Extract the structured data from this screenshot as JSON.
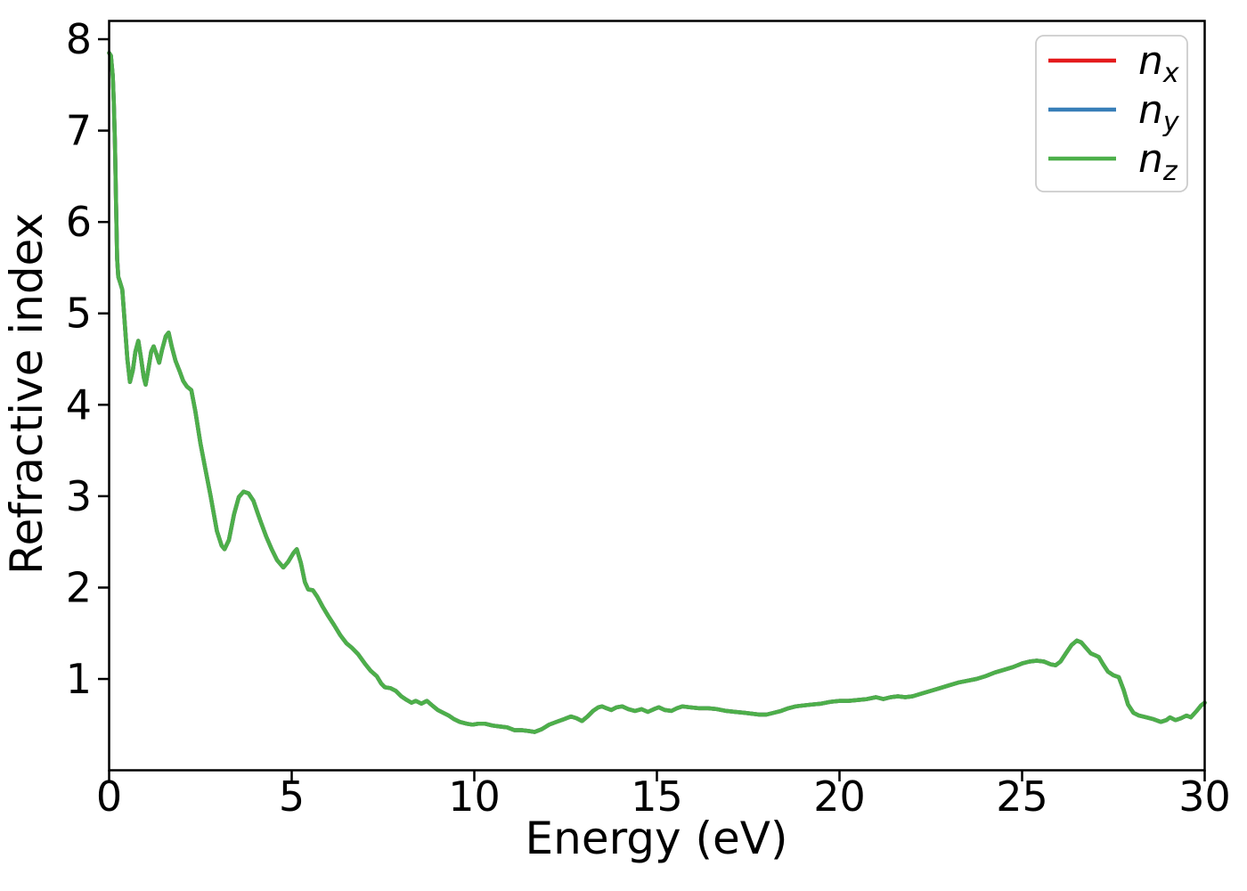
{
  "chart_data": {
    "type": "line",
    "title": "",
    "xlabel": "Energy (eV)",
    "ylabel": "Refractive index",
    "xlim": [
      0,
      30
    ],
    "ylim": [
      0,
      8.2
    ],
    "xticks": [
      0,
      5,
      10,
      15,
      20,
      25,
      30
    ],
    "yticks": [
      1,
      2,
      3,
      4,
      5,
      6,
      7,
      8
    ],
    "grid": false,
    "note": "All three series (n_x, n_y, n_z) coincide exactly; n_z (green) is drawn last so only the green curve is visible.",
    "legend": {
      "position": "upper right",
      "border_color": "#cccccc",
      "entries": [
        {
          "label": "n_x",
          "color": "#e41a1c"
        },
        {
          "label": "n_y",
          "color": "#377eb8"
        },
        {
          "label": "n_z",
          "color": "#4daf4a"
        }
      ]
    },
    "series": [
      {
        "name": "n_x",
        "color": "#e41a1c",
        "coincides_with": "n_z"
      },
      {
        "name": "n_y",
        "color": "#377eb8",
        "coincides_with": "n_z"
      },
      {
        "name": "n_z",
        "color": "#4daf4a",
        "points": [
          [
            0,
            7.85
          ],
          [
            0.05,
            7.82
          ],
          [
            0.1,
            7.6
          ],
          [
            0.13,
            7.3
          ],
          [
            0.16,
            6.85
          ],
          [
            0.19,
            6.2
          ],
          [
            0.22,
            5.6
          ],
          [
            0.25,
            5.4
          ],
          [
            0.3,
            5.34
          ],
          [
            0.36,
            5.26
          ],
          [
            0.4,
            5.05
          ],
          [
            0.45,
            4.78
          ],
          [
            0.5,
            4.5
          ],
          [
            0.57,
            4.25
          ],
          [
            0.65,
            4.38
          ],
          [
            0.72,
            4.58
          ],
          [
            0.8,
            4.7
          ],
          [
            0.87,
            4.52
          ],
          [
            0.95,
            4.3
          ],
          [
            1,
            4.22
          ],
          [
            1.07,
            4.38
          ],
          [
            1.15,
            4.58
          ],
          [
            1.22,
            4.64
          ],
          [
            1.3,
            4.55
          ],
          [
            1.37,
            4.46
          ],
          [
            1.45,
            4.6
          ],
          [
            1.55,
            4.75
          ],
          [
            1.63,
            4.79
          ],
          [
            1.72,
            4.63
          ],
          [
            1.82,
            4.48
          ],
          [
            1.93,
            4.37
          ],
          [
            2.03,
            4.26
          ],
          [
            2.13,
            4.2
          ],
          [
            2.25,
            4.16
          ],
          [
            2.36,
            3.93
          ],
          [
            2.5,
            3.58
          ],
          [
            2.62,
            3.33
          ],
          [
            2.78,
            3
          ],
          [
            2.95,
            2.62
          ],
          [
            3.08,
            2.46
          ],
          [
            3.16,
            2.42
          ],
          [
            3.28,
            2.52
          ],
          [
            3.42,
            2.8
          ],
          [
            3.55,
            2.99
          ],
          [
            3.68,
            3.05
          ],
          [
            3.82,
            3.03
          ],
          [
            3.95,
            2.95
          ],
          [
            4.08,
            2.8
          ],
          [
            4.16,
            2.71
          ],
          [
            4.3,
            2.56
          ],
          [
            4.45,
            2.42
          ],
          [
            4.6,
            2.3
          ],
          [
            4.77,
            2.22
          ],
          [
            4.9,
            2.28
          ],
          [
            5.05,
            2.38
          ],
          [
            5.14,
            2.42
          ],
          [
            5.25,
            2.27
          ],
          [
            5.36,
            2.06
          ],
          [
            5.45,
            1.98
          ],
          [
            5.58,
            1.97
          ],
          [
            5.7,
            1.9
          ],
          [
            5.85,
            1.79
          ],
          [
            6,
            1.69
          ],
          [
            6.16,
            1.59
          ],
          [
            6.33,
            1.48
          ],
          [
            6.5,
            1.39
          ],
          [
            6.65,
            1.34
          ],
          [
            6.82,
            1.27
          ],
          [
            7,
            1.17
          ],
          [
            7.16,
            1.09
          ],
          [
            7.33,
            1.03
          ],
          [
            7.45,
            0.95
          ],
          [
            7.55,
            0.91
          ],
          [
            7.7,
            0.9
          ],
          [
            7.85,
            0.87
          ],
          [
            8,
            0.81
          ],
          [
            8.15,
            0.77
          ],
          [
            8.28,
            0.74
          ],
          [
            8.4,
            0.76
          ],
          [
            8.55,
            0.73
          ],
          [
            8.7,
            0.76
          ],
          [
            8.85,
            0.71
          ],
          [
            9,
            0.66
          ],
          [
            9.15,
            0.63
          ],
          [
            9.3,
            0.6
          ],
          [
            9.45,
            0.56
          ],
          [
            9.6,
            0.53
          ],
          [
            9.8,
            0.51
          ],
          [
            9.95,
            0.5
          ],
          [
            10.1,
            0.51
          ],
          [
            10.3,
            0.51
          ],
          [
            10.5,
            0.49
          ],
          [
            10.7,
            0.48
          ],
          [
            10.9,
            0.47
          ],
          [
            11.1,
            0.44
          ],
          [
            11.3,
            0.44
          ],
          [
            11.5,
            0.43
          ],
          [
            11.65,
            0.42
          ],
          [
            11.85,
            0.45
          ],
          [
            12.05,
            0.5
          ],
          [
            12.25,
            0.53
          ],
          [
            12.45,
            0.56
          ],
          [
            12.65,
            0.59
          ],
          [
            12.8,
            0.57
          ],
          [
            12.95,
            0.54
          ],
          [
            13.1,
            0.59
          ],
          [
            13.25,
            0.65
          ],
          [
            13.4,
            0.69
          ],
          [
            13.5,
            0.7
          ],
          [
            13.62,
            0.68
          ],
          [
            13.75,
            0.66
          ],
          [
            13.9,
            0.69
          ],
          [
            14.05,
            0.7
          ],
          [
            14.22,
            0.67
          ],
          [
            14.4,
            0.65
          ],
          [
            14.58,
            0.67
          ],
          [
            14.75,
            0.64
          ],
          [
            14.92,
            0.67
          ],
          [
            15.05,
            0.69
          ],
          [
            15.22,
            0.66
          ],
          [
            15.4,
            0.65
          ],
          [
            15.55,
            0.68
          ],
          [
            15.7,
            0.7
          ],
          [
            15.9,
            0.69
          ],
          [
            16.15,
            0.68
          ],
          [
            16.4,
            0.68
          ],
          [
            16.65,
            0.67
          ],
          [
            16.9,
            0.65
          ],
          [
            17.15,
            0.64
          ],
          [
            17.4,
            0.63
          ],
          [
            17.6,
            0.62
          ],
          [
            17.8,
            0.61
          ],
          [
            18,
            0.61
          ],
          [
            18.2,
            0.63
          ],
          [
            18.4,
            0.65
          ],
          [
            18.6,
            0.68
          ],
          [
            18.8,
            0.7
          ],
          [
            19,
            0.71
          ],
          [
            19.25,
            0.72
          ],
          [
            19.5,
            0.73
          ],
          [
            19.75,
            0.75
          ],
          [
            20,
            0.76
          ],
          [
            20.25,
            0.76
          ],
          [
            20.5,
            0.77
          ],
          [
            20.75,
            0.78
          ],
          [
            21,
            0.8
          ],
          [
            21.2,
            0.78
          ],
          [
            21.4,
            0.8
          ],
          [
            21.6,
            0.81
          ],
          [
            21.8,
            0.8
          ],
          [
            22,
            0.81
          ],
          [
            22.25,
            0.84
          ],
          [
            22.5,
            0.87
          ],
          [
            22.75,
            0.9
          ],
          [
            23,
            0.93
          ],
          [
            23.25,
            0.96
          ],
          [
            23.5,
            0.98
          ],
          [
            23.75,
            1
          ],
          [
            24,
            1.03
          ],
          [
            24.25,
            1.07
          ],
          [
            24.5,
            1.1
          ],
          [
            24.75,
            1.13
          ],
          [
            25,
            1.17
          ],
          [
            25.2,
            1.19
          ],
          [
            25.4,
            1.2
          ],
          [
            25.6,
            1.19
          ],
          [
            25.78,
            1.16
          ],
          [
            25.92,
            1.15
          ],
          [
            26.05,
            1.19
          ],
          [
            26.2,
            1.28
          ],
          [
            26.35,
            1.37
          ],
          [
            26.5,
            1.42
          ],
          [
            26.62,
            1.4
          ],
          [
            26.75,
            1.34
          ],
          [
            26.88,
            1.28
          ],
          [
            27,
            1.26
          ],
          [
            27.1,
            1.24
          ],
          [
            27.22,
            1.16
          ],
          [
            27.35,
            1.08
          ],
          [
            27.5,
            1.04
          ],
          [
            27.65,
            1.02
          ],
          [
            27.78,
            0.88
          ],
          [
            27.9,
            0.72
          ],
          [
            28.05,
            0.63
          ],
          [
            28.2,
            0.6
          ],
          [
            28.4,
            0.58
          ],
          [
            28.6,
            0.56
          ],
          [
            28.8,
            0.53
          ],
          [
            28.95,
            0.55
          ],
          [
            29.05,
            0.58
          ],
          [
            29.2,
            0.55
          ],
          [
            29.35,
            0.57
          ],
          [
            29.5,
            0.6
          ],
          [
            29.62,
            0.58
          ],
          [
            29.78,
            0.65
          ],
          [
            29.9,
            0.71
          ],
          [
            30,
            0.74
          ]
        ]
      }
    ]
  }
}
